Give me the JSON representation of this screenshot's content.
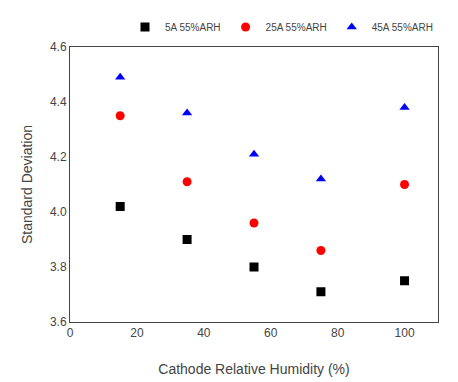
{
  "chart_data": {
    "type": "scatter",
    "xlabel": "Cathode Relative Humidity (%)",
    "ylabel": "Standard Deviation",
    "series": [
      {
        "name": "5A 55%ARH",
        "color": "black",
        "marker": "square",
        "x": [
          15,
          35,
          55,
          75,
          100
        ],
        "values": [
          4.02,
          3.9,
          3.8,
          3.71,
          3.75
        ]
      },
      {
        "name": "25A 55%ARH",
        "color": "red",
        "marker": "circle",
        "x": [
          15,
          35,
          55,
          75,
          100
        ],
        "values": [
          4.35,
          4.11,
          3.96,
          3.86,
          4.1
        ]
      },
      {
        "name": "45A 55%ARH",
        "color": "blue",
        "marker": "triangle-up",
        "x": [
          15,
          35,
          55,
          75,
          100
        ],
        "values": [
          4.49,
          4.36,
          4.21,
          4.12,
          4.38
        ]
      }
    ],
    "xlim": [
      0,
      110
    ],
    "ylim": [
      3.6,
      4.6
    ],
    "xticks": [
      0,
      20,
      40,
      60,
      80,
      100
    ],
    "yticks": [
      3.6,
      3.8,
      {
        "value": 4.0,
        "label": "4.0"
      },
      4.2,
      4.4,
      4.6
    ],
    "grid": false,
    "legend": "upper right"
  }
}
